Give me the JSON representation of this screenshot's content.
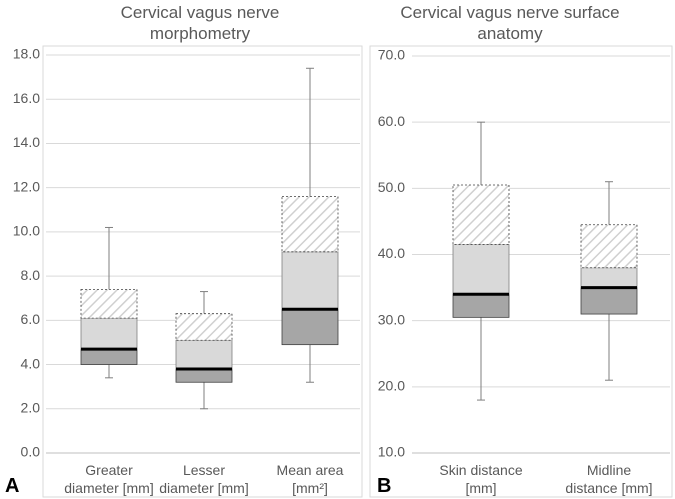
{
  "chart_data": [
    {
      "type": "box",
      "panel_label": "A",
      "title": "Cervical vagus nerve morphometry",
      "categories": [
        "Greater diameter [mm]",
        "Lesser diameter [mm]",
        "Mean area [mm²]"
      ],
      "boxes": [
        {
          "min": 3.4,
          "q1": 4.0,
          "median": 4.7,
          "mid": 6.1,
          "q3": 7.4,
          "max": 10.2
        },
        {
          "min": 2.0,
          "q1": 3.2,
          "median": 3.8,
          "mid": 5.1,
          "q3": 6.3,
          "max": 7.3
        },
        {
          "min": 3.2,
          "q1": 4.9,
          "median": 6.5,
          "mid": 9.1,
          "q3": 11.6,
          "max": 17.4
        }
      ],
      "ylim": [
        0,
        18
      ],
      "yticks": [
        {
          "value": 0,
          "label": "0.0"
        },
        {
          "value": 2,
          "label": "2.0"
        },
        {
          "value": 4,
          "label": "4.0"
        },
        {
          "value": 6,
          "label": "6.0"
        },
        {
          "value": 8,
          "label": "8.0"
        },
        {
          "value": 10,
          "label": "10.0"
        },
        {
          "value": 12,
          "label": "12.0"
        },
        {
          "value": 14,
          "label": "14.0"
        },
        {
          "value": 16,
          "label": "16.0"
        },
        {
          "value": 18,
          "label": "18.0"
        }
      ],
      "grid": true,
      "colors": {
        "lower": "#a6a6a6",
        "upper": "#d9d9d9",
        "hatch": "#d0d0d0",
        "whisker": "#7f7f7f",
        "median": "#000000"
      }
    },
    {
      "type": "box",
      "panel_label": "B",
      "title": "Cervical vagus nerve surface anatomy",
      "categories": [
        "Skin distance [mm]",
        "Midline distance [mm]"
      ],
      "boxes": [
        {
          "min": 18,
          "q1": 30.5,
          "median": 34,
          "mid": 41.5,
          "q3": 50.5,
          "max": 60
        },
        {
          "min": 21,
          "q1": 31,
          "median": 35,
          "mid": 38,
          "q3": 44.5,
          "max": 51
        }
      ],
      "ylim": [
        10,
        70
      ],
      "yticks": [
        {
          "value": 10,
          "label": "10.0"
        },
        {
          "value": 20,
          "label": "20.0"
        },
        {
          "value": 30,
          "label": "30.0"
        },
        {
          "value": 40,
          "label": "40.0"
        },
        {
          "value": 50,
          "label": "50.0"
        },
        {
          "value": 60,
          "label": "60.0"
        },
        {
          "value": 70,
          "label": "70.0"
        }
      ],
      "grid": true,
      "colors": {
        "lower": "#a6a6a6",
        "upper": "#d9d9d9",
        "hatch": "#d0d0d0",
        "whisker": "#7f7f7f",
        "median": "#000000"
      }
    }
  ]
}
